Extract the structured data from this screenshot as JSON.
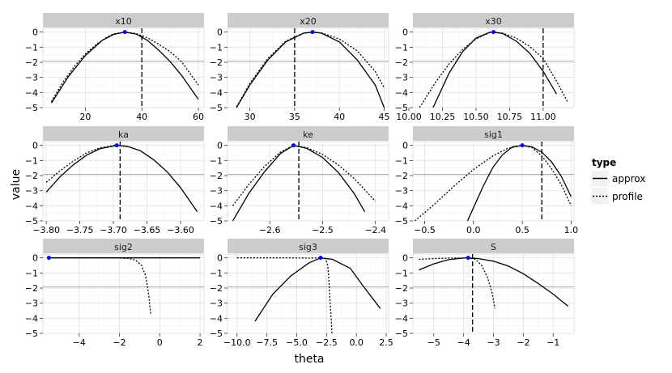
{
  "figure": {
    "xlabel": "theta",
    "ylabel": "value",
    "legend": {
      "title": "type",
      "items": [
        {
          "label": "approx",
          "linetype": "solid"
        },
        {
          "label": "profile",
          "linetype": "dotted"
        }
      ]
    }
  },
  "colors": {
    "panel_bg": "#ffffff",
    "grid_major": "#e3e3e3",
    "grid_minor": "#f2f2f2",
    "strip_bg": "#cccccc",
    "threshold_line": "#b3b3b3",
    "line": "#000000",
    "point": "#0000ff"
  },
  "chart_data": [
    {
      "type": "line",
      "panel": "x10",
      "xlim": [
        5,
        62
      ],
      "ylim": [
        -5,
        0.25
      ],
      "xticks": [
        20,
        40,
        60
      ],
      "xtick_labels": [
        "20",
        "40",
        "60"
      ],
      "yticks": [
        0,
        -1,
        -2,
        -3,
        -4,
        -5
      ],
      "ytick_labels": [
        "0",
        "−1",
        "−2",
        "−3",
        "−4",
        "−5"
      ],
      "threshold": -1.92,
      "vline": 40,
      "mle": {
        "x": 34,
        "y": 0
      },
      "series": [
        {
          "name": "approx",
          "linetype": "solid",
          "x": [
            8,
            14,
            20,
            26,
            30,
            34,
            38,
            42,
            46,
            50,
            54,
            60
          ],
          "y": [
            -4.7,
            -2.95,
            -1.55,
            -0.55,
            -0.15,
            0,
            -0.13,
            -0.55,
            -1.2,
            -1.95,
            -2.85,
            -4.45
          ]
        },
        {
          "name": "profile",
          "linetype": "dotted",
          "x": [
            8,
            12,
            16,
            20,
            24,
            28,
            30,
            34,
            38,
            42,
            46,
            50,
            54,
            60
          ],
          "y": [
            -4.6,
            -3.35,
            -2.3,
            -1.45,
            -0.8,
            -0.3,
            -0.12,
            0,
            -0.1,
            -0.38,
            -0.8,
            -1.3,
            -1.95,
            -3.5
          ]
        }
      ]
    },
    {
      "type": "line",
      "panel": "x20",
      "xlim": [
        27.5,
        45.5
      ],
      "ylim": [
        -5,
        0.25
      ],
      "xticks": [
        30,
        35,
        40,
        45
      ],
      "xtick_labels": [
        "30",
        "35",
        "40",
        "45"
      ],
      "yticks": [
        0,
        -1,
        -2,
        -3,
        -4,
        -5
      ],
      "ytick_labels": [
        "0",
        "−1",
        "−2",
        "−3",
        "−4",
        "−5"
      ],
      "threshold": -1.92,
      "vline": 35,
      "mle": {
        "x": 37,
        "y": 0
      },
      "series": [
        {
          "name": "approx",
          "linetype": "solid",
          "x": [
            28.5,
            30,
            32,
            34,
            36,
            37,
            38,
            40,
            42,
            44,
            45
          ],
          "y": [
            -5,
            -3.5,
            -1.85,
            -0.65,
            -0.07,
            0,
            -0.07,
            -0.65,
            -1.85,
            -3.5,
            -5
          ]
        },
        {
          "name": "profile",
          "linetype": "dotted",
          "x": [
            28.5,
            30,
            32,
            34,
            36,
            37,
            38,
            40,
            42,
            44,
            45
          ],
          "y": [
            -4.95,
            -3.4,
            -1.75,
            -0.6,
            -0.06,
            0,
            -0.05,
            -0.45,
            -1.25,
            -2.6,
            -3.7
          ]
        }
      ]
    },
    {
      "type": "line",
      "panel": "x30",
      "xlim": [
        10.03,
        11.23
      ],
      "ylim": [
        -5,
        0.25
      ],
      "xticks": [
        10.0,
        10.25,
        10.5,
        10.75,
        11.0
      ],
      "xtick_labels": [
        "10.00",
        "10.25",
        "10.50",
        "10.75",
        "11.00"
      ],
      "yticks": [
        0,
        -1,
        -2,
        -3,
        -4,
        -5
      ],
      "ytick_labels": [
        "0",
        "−1",
        "−2",
        "−3",
        "−4",
        "−5"
      ],
      "threshold": -1.92,
      "vline": 11.0,
      "mle": {
        "x": 10.63,
        "y": 0
      },
      "series": [
        {
          "name": "approx",
          "linetype": "solid",
          "x": [
            10.18,
            10.3,
            10.4,
            10.5,
            10.6,
            10.63,
            10.7,
            10.8,
            10.9,
            11.0,
            11.1
          ],
          "y": [
            -5,
            -2.7,
            -1.3,
            -0.4,
            -0.02,
            0,
            -0.1,
            -0.6,
            -1.4,
            -2.6,
            -4.1
          ]
        },
        {
          "name": "profile",
          "linetype": "dotted",
          "x": [
            10.08,
            10.2,
            10.3,
            10.4,
            10.5,
            10.6,
            10.63,
            10.7,
            10.8,
            10.9,
            11.0,
            11.1,
            11.18
          ],
          "y": [
            -5,
            -3.3,
            -2.1,
            -1.15,
            -0.45,
            -0.04,
            0,
            -0.07,
            -0.4,
            -0.95,
            -1.75,
            -3.25,
            -4.6
          ]
        }
      ]
    },
    {
      "type": "line",
      "panel": "ka",
      "xlim": [
        -3.805,
        -3.565
      ],
      "ylim": [
        -5,
        0.25
      ],
      "xticks": [
        -3.8,
        -3.75,
        -3.7,
        -3.65,
        -3.6
      ],
      "xtick_labels": [
        "−3.80",
        "−3.75",
        "−3.70",
        "−3.65",
        "−3.60"
      ],
      "yticks": [
        0,
        -1,
        -2,
        -3,
        -4,
        -5
      ],
      "ytick_labels": [
        "0",
        "−1",
        "−2",
        "−3",
        "−4",
        "−5"
      ],
      "threshold": -1.92,
      "vline": -3.69,
      "mle": {
        "x": -3.695,
        "y": 0
      },
      "series": [
        {
          "name": "approx",
          "linetype": "solid",
          "x": [
            -3.8,
            -3.78,
            -3.76,
            -3.74,
            -3.72,
            -3.695,
            -3.68,
            -3.66,
            -3.64,
            -3.62,
            -3.6,
            -3.575
          ],
          "y": [
            -3.1,
            -2.1,
            -1.3,
            -0.65,
            -0.22,
            0,
            -0.05,
            -0.35,
            -0.95,
            -1.75,
            -2.8,
            -4.4
          ]
        },
        {
          "name": "profile",
          "linetype": "dotted",
          "x": [
            -3.8,
            -3.78,
            -3.76,
            -3.74,
            -3.72,
            -3.7,
            -3.695,
            -3.69,
            -3.68
          ],
          "y": [
            -2.45,
            -1.7,
            -1.05,
            -0.5,
            -0.16,
            -0.01,
            0,
            -0.02,
            -0.1
          ]
        }
      ]
    },
    {
      "type": "line",
      "panel": "ke",
      "xlim": [
        -2.68,
        -2.375
      ],
      "ylim": [
        -5,
        0.25
      ],
      "xticks": [
        -2.6,
        -2.5,
        -2.4
      ],
      "xtick_labels": [
        "−2.6",
        "−2.5",
        "−2.4"
      ],
      "yticks": [
        0,
        -1,
        -2,
        -3,
        -4,
        -5
      ],
      "ytick_labels": [
        "0",
        "−1",
        "−2",
        "−3",
        "−4",
        "−5"
      ],
      "threshold": -1.92,
      "vline": -2.545,
      "mle": {
        "x": -2.555,
        "y": 0
      },
      "series": [
        {
          "name": "approx",
          "linetype": "solid",
          "x": [
            -2.67,
            -2.64,
            -2.61,
            -2.58,
            -2.555,
            -2.53,
            -2.5,
            -2.47,
            -2.44,
            -2.42
          ],
          "y": [
            -5,
            -3.2,
            -1.75,
            -0.55,
            0,
            -0.2,
            -0.8,
            -1.8,
            -3.2,
            -4.4
          ]
        },
        {
          "name": "profile",
          "linetype": "dotted",
          "x": [
            -2.67,
            -2.64,
            -2.61,
            -2.58,
            -2.555,
            -2.53,
            -2.5,
            -2.47,
            -2.44,
            -2.4
          ],
          "y": [
            -4.0,
            -2.6,
            -1.4,
            -0.45,
            0,
            -0.15,
            -0.6,
            -1.3,
            -2.2,
            -3.7
          ]
        }
      ]
    },
    {
      "type": "line",
      "panel": "sig1",
      "xlim": [
        -0.62,
        1.03
      ],
      "ylim": [
        -5,
        0.25
      ],
      "xticks": [
        -0.5,
        0.0,
        0.5,
        1.0
      ],
      "xtick_labels": [
        "−0.5",
        "0.0",
        "0.5",
        "1.0"
      ],
      "yticks": [
        0,
        -1,
        -2,
        -3,
        -4,
        -5
      ],
      "ytick_labels": [
        "0",
        "−1",
        "−2",
        "−3",
        "−4",
        "−5"
      ],
      "threshold": -1.92,
      "vline": 0.7,
      "mle": {
        "x": 0.5,
        "y": 0
      },
      "series": [
        {
          "name": "approx",
          "linetype": "solid",
          "x": [
            -0.06,
            0.1,
            0.2,
            0.3,
            0.4,
            0.5,
            0.6,
            0.7,
            0.8,
            0.9,
            1.0
          ],
          "y": [
            -5,
            -2.7,
            -1.45,
            -0.6,
            -0.1,
            0,
            -0.1,
            -0.45,
            -1.1,
            -2.05,
            -3.4
          ]
        },
        {
          "name": "profile",
          "linetype": "dotted",
          "x": [
            -0.6,
            -0.4,
            -0.2,
            0.0,
            0.2,
            0.35,
            0.5,
            0.6,
            0.7,
            0.8,
            0.9,
            1.0
          ],
          "y": [
            -5,
            -3.9,
            -2.7,
            -1.6,
            -0.7,
            -0.2,
            0,
            -0.15,
            -0.7,
            -1.55,
            -2.6,
            -4.0
          ]
        }
      ]
    },
    {
      "type": "line",
      "panel": "sig2",
      "xlim": [
        -5.8,
        2.2
      ],
      "ylim": [
        -5,
        0.25
      ],
      "xticks": [
        -4,
        -2,
        0,
        2
      ],
      "xtick_labels": [
        "−4",
        "−2",
        "0",
        "2"
      ],
      "yticks": [
        0,
        -1,
        -2,
        -3,
        -4,
        -5
      ],
      "ytick_labels": [
        "0",
        "−1",
        "−2",
        "−3",
        "−4",
        "−5"
      ],
      "threshold": -1.92,
      "vline": null,
      "mle": {
        "x": -5.5,
        "y": 0
      },
      "series": [
        {
          "name": "approx",
          "linetype": "solid",
          "x": [
            -5.5,
            2.0
          ],
          "y": [
            0,
            0
          ]
        },
        {
          "name": "profile",
          "linetype": "dotted",
          "x": [
            -5.5,
            -3,
            -2,
            -1.5,
            -1.2,
            -0.9,
            -0.7,
            -0.55,
            -0.45
          ],
          "y": [
            0,
            0,
            -0.01,
            -0.05,
            -0.15,
            -0.5,
            -1.2,
            -2.4,
            -3.7
          ]
        }
      ]
    },
    {
      "type": "line",
      "panel": "sig3",
      "xlim": [
        -10.8,
        2.7
      ],
      "ylim": [
        -5,
        0.25
      ],
      "xticks": [
        -10,
        -7.5,
        -5,
        -2.5,
        0,
        2.5
      ],
      "xtick_labels": [
        "−10.0",
        "−7.5",
        "−5.0",
        "−2.5",
        "0.0",
        "2.5"
      ],
      "yticks": [
        0,
        -1,
        -2,
        -3,
        -4,
        -5
      ],
      "ytick_labels": [
        "0",
        "−1",
        "−2",
        "−3",
        "−4",
        "−5"
      ],
      "threshold": -1.92,
      "vline": null,
      "mle": {
        "x": -3.0,
        "y": 0
      },
      "series": [
        {
          "name": "approx",
          "linetype": "solid",
          "x": [
            -8.5,
            -7,
            -5.5,
            -4,
            -3,
            -2,
            -0.5,
            0.5,
            2.0
          ],
          "y": [
            -4.2,
            -2.4,
            -1.2,
            -0.35,
            0,
            -0.1,
            -0.7,
            -1.8,
            -3.35
          ]
        },
        {
          "name": "profile",
          "linetype": "dotted",
          "x": [
            -10,
            -6,
            -4,
            -3,
            -2.6,
            -2.4,
            -2.3,
            -2.2,
            -2.1,
            -2.05
          ],
          "y": [
            0,
            0,
            -0.02,
            0,
            -0.05,
            -0.5,
            -1.5,
            -3.0,
            -4.2,
            -5
          ]
        }
      ]
    },
    {
      "type": "line",
      "panel": "S",
      "xlim": [
        -5.7,
        -0.3
      ],
      "ylim": [
        -5,
        0.25
      ],
      "xticks": [
        -5,
        -4,
        -3,
        -2,
        -1
      ],
      "xtick_labels": [
        "−5",
        "−4",
        "−3",
        "−2",
        "−1"
      ],
      "yticks": [
        0,
        -1,
        -2,
        -3,
        -4,
        -5
      ],
      "ytick_labels": [
        "0",
        "−1",
        "−2",
        "−3",
        "−4",
        "−5"
      ],
      "threshold": -1.92,
      "vline": -3.7,
      "mle": {
        "x": -3.85,
        "y": 0
      },
      "series": [
        {
          "name": "approx",
          "linetype": "solid",
          "x": [
            -5.5,
            -5,
            -4.5,
            -4,
            -3.85,
            -3.5,
            -3,
            -2.5,
            -2,
            -1.5,
            -1,
            -0.5
          ],
          "y": [
            -0.8,
            -0.4,
            -0.12,
            -0.01,
            0,
            -0.05,
            -0.22,
            -0.55,
            -1.05,
            -1.7,
            -2.4,
            -3.2
          ]
        },
        {
          "name": "profile",
          "linetype": "dotted",
          "x": [
            -5.5,
            -5,
            -4.5,
            -4,
            -3.85,
            -3.6,
            -3.4,
            -3.2,
            -3.05,
            -2.95
          ],
          "y": [
            -0.1,
            -0.05,
            -0.02,
            -0.01,
            0,
            -0.1,
            -0.5,
            -1.3,
            -2.3,
            -3.35
          ]
        }
      ]
    }
  ]
}
